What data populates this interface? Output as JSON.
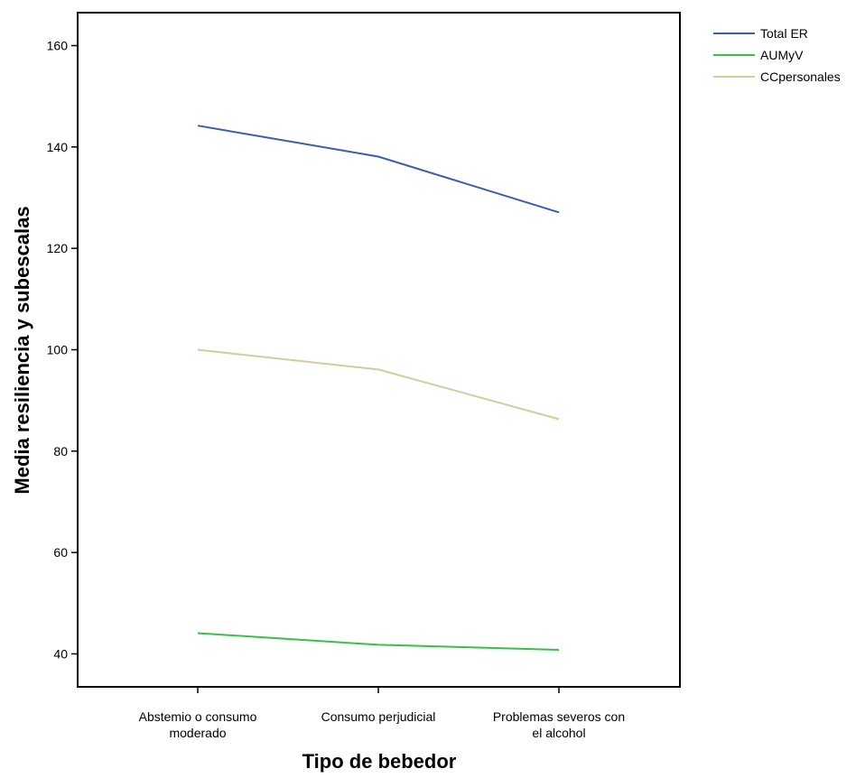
{
  "chart_data": {
    "type": "line",
    "categories": [
      [
        "Abstemio o consumo",
        "moderado"
      ],
      [
        "Consumo perjudicial"
      ],
      [
        "Problemas severos con",
        "el alcohol"
      ]
    ],
    "series": [
      {
        "name": "Total ER",
        "color": "#3b5ea8",
        "values": [
          144.2,
          138.1,
          127.1
        ]
      },
      {
        "name": "AUMyV",
        "color": "#3cbf4a",
        "values": [
          44.1,
          41.8,
          40.8
        ]
      },
      {
        "name": "CCpersonales",
        "color": "#d4cc9c",
        "values": [
          100.0,
          96.1,
          86.3
        ]
      }
    ],
    "xlabel": "Tipo de bebedor",
    "ylabel": "Media resiliencia y subescalas",
    "ylim": [
      33.5,
      166.5
    ],
    "yticks": [
      40,
      60,
      80,
      100,
      120,
      140,
      160
    ],
    "grid": false,
    "legend": "top-right"
  }
}
